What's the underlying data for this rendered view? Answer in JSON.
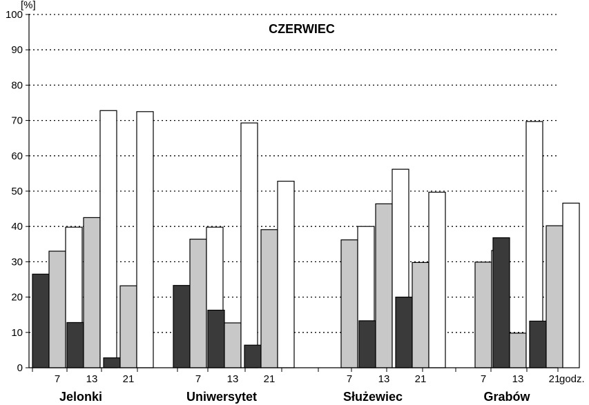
{
  "chart_data": {
    "type": "bar",
    "title": "CZERWIEC",
    "ylabel": "[%]",
    "xlabel": "godz.",
    "ylim": [
      0,
      100
    ],
    "yticks": [
      0,
      10,
      20,
      30,
      40,
      50,
      60,
      70,
      80,
      90,
      100
    ],
    "grid": true,
    "groups": [
      {
        "name": "Jelonki",
        "hours": [
          "7",
          "13",
          "21"
        ],
        "bars": [
          [
            26.5,
            33,
            39.8
          ],
          [
            12.8,
            42.5,
            72.8
          ],
          [
            2.8,
            23.2,
            72.5
          ]
        ]
      },
      {
        "name": "Uniwersytet",
        "hours": [
          "7",
          "13",
          "21"
        ],
        "bars": [
          [
            23.3,
            36.4,
            39.8
          ],
          [
            16.3,
            12.7,
            69.3
          ],
          [
            6.4,
            39.1,
            52.8
          ]
        ]
      },
      {
        "name": "Służewiec",
        "hours": [
          "7",
          "13",
          "21"
        ],
        "bars": [
          [
            0,
            36.2,
            40
          ],
          [
            13.3,
            46.4,
            56.2
          ],
          [
            20,
            29.8,
            49.7
          ]
        ]
      },
      {
        "name": "Grabów",
        "hours": [
          "7",
          "13",
          "21"
        ],
        "bars": [
          [
            0,
            29.9,
            33.2
          ],
          [
            36.8,
            9.8,
            69.7
          ],
          [
            13.2,
            40.2,
            46.6
          ]
        ]
      }
    ],
    "series_colors": [
      "#3a3a3a",
      "#c8c8c8",
      "#ffffff"
    ]
  }
}
